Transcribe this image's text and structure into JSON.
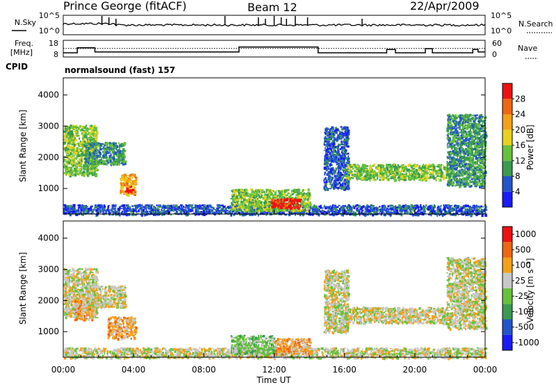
{
  "header": {
    "station": "Prince George (fitACF)",
    "beam": "Beam 12",
    "date": "22/Apr/2009"
  },
  "noise_panel": {
    "left_label": "N.Sky",
    "right_label": "N.Search",
    "left_ticks": [
      "10^5",
      "10^0"
    ],
    "right_ticks": [
      "10^5",
      "10^0"
    ]
  },
  "freq_panel": {
    "left_label_1": "Freq.",
    "left_label_2": "[MHz]",
    "right_label": "Nave",
    "left_ticks": [
      "18",
      "8"
    ],
    "right_ticks": [
      "60",
      "0"
    ],
    "freq_mhz": [
      [
        0,
        10.5
      ],
      [
        0.8,
        10.5
      ],
      [
        0.8,
        13.5
      ],
      [
        1.8,
        13.5
      ],
      [
        1.8,
        11
      ],
      [
        10,
        11
      ],
      [
        10,
        14
      ],
      [
        14.5,
        14
      ],
      [
        14.5,
        10.5
      ],
      [
        18.4,
        10.5
      ],
      [
        18.4,
        12.5
      ],
      [
        18.9,
        12.5
      ],
      [
        18.9,
        10.5
      ],
      [
        20.6,
        10.5
      ],
      [
        20.6,
        13
      ],
      [
        21,
        13
      ],
      [
        21,
        10.5
      ],
      [
        23.3,
        10.5
      ],
      [
        23.3,
        12.5
      ],
      [
        23.6,
        12.5
      ],
      [
        23.6,
        11
      ],
      [
        24,
        11
      ]
    ],
    "nave_level": 31
  },
  "cpid": {
    "label": "CPID",
    "text": "normalsound (fast) 157"
  },
  "x_axis": {
    "title": "Time UT",
    "ticks": [
      "00:00",
      "04:00",
      "08:00",
      "12:00",
      "16:00",
      "20:00",
      "00:00"
    ]
  },
  "chart_data": [
    {
      "type": "heatmap",
      "panel": "power",
      "ylabel": "Slant Range [km]",
      "yticks": [
        1000,
        2000,
        3000,
        4000
      ],
      "ylim": [
        180,
        4550
      ],
      "xlim_hours": [
        0,
        24
      ],
      "colorbar": {
        "label": "Power [dB]",
        "ticks": [
          "4",
          "8",
          "12",
          "16",
          "20",
          "24",
          "28"
        ],
        "colors": [
          "#1a1aff",
          "#2255cc",
          "#3a9a50",
          "#66c23a",
          "#e6d21e",
          "#f5a019",
          "#ee6611",
          "#ee1111"
        ]
      },
      "regions": [
        {
          "t": [
            0.0,
            1.9
          ],
          "r": [
            1450,
            3050
          ],
          "c": 3
        },
        {
          "t": [
            1.2,
            3.5
          ],
          "r": [
            1800,
            2500
          ],
          "c": 2
        },
        {
          "t": [
            3.2,
            4.1
          ],
          "r": [
            800,
            1500
          ],
          "c": 5
        },
        {
          "t": [
            3.5,
            3.9
          ],
          "r": [
            900,
            1100
          ],
          "c": 7
        },
        {
          "t": [
            0.0,
            24.0
          ],
          "r": [
            180,
            500
          ],
          "c": 1
        },
        {
          "t": [
            9.5,
            14.0
          ],
          "r": [
            300,
            1000
          ],
          "c": 3
        },
        {
          "t": [
            11.8,
            13.5
          ],
          "r": [
            400,
            700
          ],
          "c": 7
        },
        {
          "t": [
            14.8,
            16.2
          ],
          "r": [
            1000,
            3000
          ],
          "c": 1
        },
        {
          "t": [
            16.0,
            21.8
          ],
          "r": [
            1300,
            1800
          ],
          "c": 3
        },
        {
          "t": [
            21.8,
            24.0
          ],
          "r": [
            1100,
            3400
          ],
          "c": 2
        }
      ]
    },
    {
      "type": "heatmap",
      "panel": "velocity",
      "ylabel": "Slant Range [km]",
      "yticks": [
        1000,
        2000,
        3000,
        4000
      ],
      "ylim": [
        180,
        4550
      ],
      "xlim_hours": [
        0,
        24
      ],
      "colorbar": {
        "label": "Velocity [m s⁻¹]",
        "ticks": [
          "1000",
          "500",
          "100",
          "25",
          "-25",
          "-100",
          "-500",
          "-1000"
        ],
        "colors": [
          "#1a1aff",
          "#2255cc",
          "#3a9a50",
          "#66c23a",
          "#c8c8c8",
          "#f5a019",
          "#ee6611",
          "#ee1111"
        ]
      },
      "regions": [
        {
          "t": [
            0.0,
            1.9
          ],
          "r": [
            1450,
            3050
          ],
          "c": 4
        },
        {
          "t": [
            0.6,
            1.6
          ],
          "r": [
            1400,
            2100
          ],
          "c": 5
        },
        {
          "t": [
            1.2,
            3.5
          ],
          "r": [
            1800,
            2500
          ],
          "c": 4
        },
        {
          "t": [
            2.5,
            4.1
          ],
          "r": [
            800,
            1500
          ],
          "c": 5
        },
        {
          "t": [
            0.0,
            24.0
          ],
          "r": [
            180,
            500
          ],
          "c": 4
        },
        {
          "t": [
            9.5,
            12.0
          ],
          "r": [
            300,
            900
          ],
          "c": 3
        },
        {
          "t": [
            12.0,
            14.0
          ],
          "r": [
            300,
            800
          ],
          "c": 5
        },
        {
          "t": [
            14.8,
            16.2
          ],
          "r": [
            1000,
            3000
          ],
          "c": 4
        },
        {
          "t": [
            16.0,
            21.8
          ],
          "r": [
            1300,
            1800
          ],
          "c": 4
        },
        {
          "t": [
            21.8,
            24.0
          ],
          "r": [
            1100,
            3400
          ],
          "c": 4
        }
      ]
    }
  ]
}
